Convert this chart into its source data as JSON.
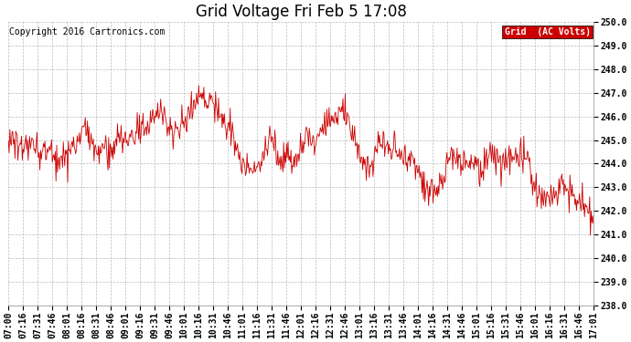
{
  "title": "Grid Voltage Fri Feb 5 17:08",
  "copyright": "Copyright 2016 Cartronics.com",
  "legend_label": "Grid  (AC Volts)",
  "line_color": "#cc0000",
  "legend_bg": "#cc0000",
  "legend_text_color": "#ffffff",
  "background_color": "#ffffff",
  "grid_color": "#bbbbbb",
  "ylim": [
    238.0,
    250.0
  ],
  "yticks": [
    238.0,
    239.0,
    240.0,
    241.0,
    242.0,
    243.0,
    244.0,
    245.0,
    246.0,
    247.0,
    248.0,
    249.0,
    250.0
  ],
  "xtick_labels": [
    "07:00",
    "07:16",
    "07:31",
    "07:46",
    "08:01",
    "08:16",
    "08:31",
    "08:46",
    "09:01",
    "09:16",
    "09:31",
    "09:46",
    "10:01",
    "10:16",
    "10:31",
    "10:46",
    "11:01",
    "11:16",
    "11:31",
    "11:46",
    "12:01",
    "12:16",
    "12:31",
    "12:46",
    "13:01",
    "13:16",
    "13:31",
    "13:46",
    "14:01",
    "14:16",
    "14:31",
    "14:46",
    "15:01",
    "15:16",
    "15:31",
    "15:46",
    "16:01",
    "16:16",
    "16:31",
    "16:46",
    "17:01"
  ],
  "title_fontsize": 12,
  "tick_fontsize": 7,
  "copyright_fontsize": 7,
  "legend_fontsize": 7,
  "line_width": 0.6,
  "noise_seed": 1234,
  "n_points": 800
}
